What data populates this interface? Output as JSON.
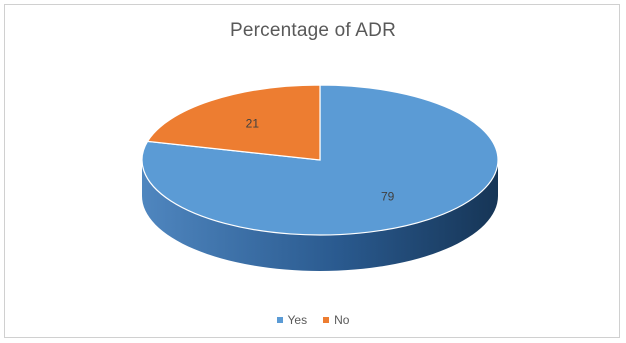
{
  "chart_data": {
    "type": "pie",
    "title": "Percentage of ADR",
    "categories": [
      "Yes",
      "No"
    ],
    "values": [
      79,
      21
    ],
    "data_labels": [
      "79",
      "21"
    ],
    "colors": [
      "#5B9BD5",
      "#ED7D31"
    ],
    "legend_position": "bottom",
    "style": "3d"
  }
}
